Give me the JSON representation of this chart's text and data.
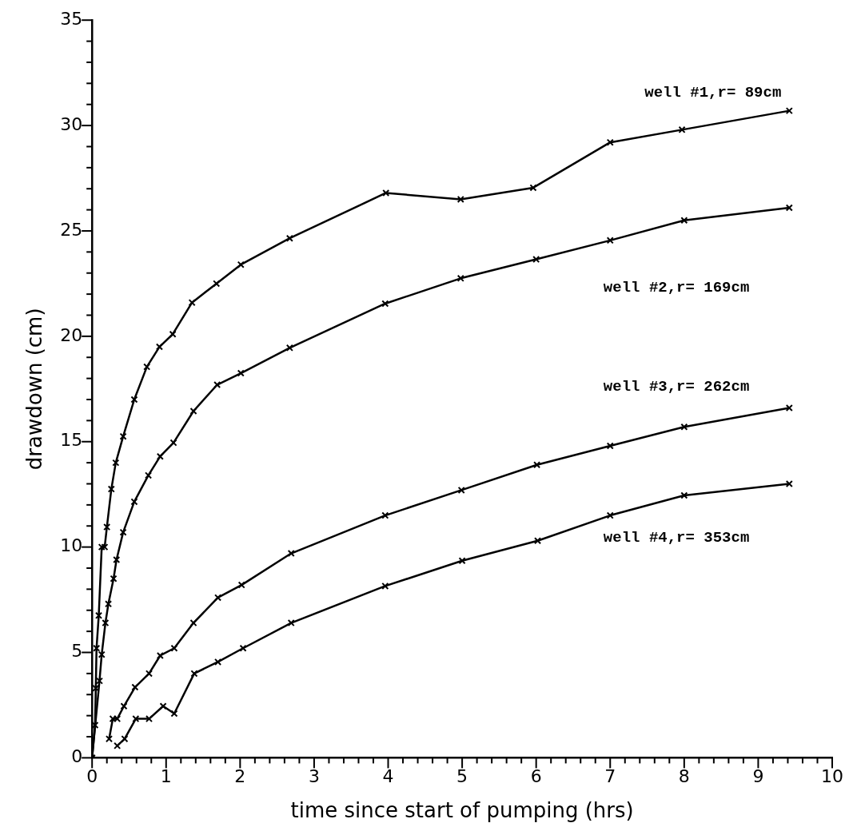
{
  "chart_data": {
    "type": "line",
    "xlabel": "time since start of pumping (hrs)",
    "ylabel": "drawdown (cm)",
    "marker": "cross",
    "line_style": "solid",
    "grid": false,
    "legend": false,
    "xlim": [
      0,
      10
    ],
    "ylim": [
      0,
      35
    ],
    "xticks": [
      0,
      {
        "value": 0.2,
        "label": null
      },
      {
        "value": 0.4,
        "label": null
      },
      {
        "value": 0.6,
        "label": null
      },
      {
        "value": 0.8,
        "label": null
      },
      1,
      {
        "value": 1.2,
        "label": null
      },
      {
        "value": 1.4,
        "label": null
      },
      {
        "value": 1.6,
        "label": null
      },
      {
        "value": 1.8,
        "label": null
      },
      2,
      {
        "value": 2.2,
        "label": null
      },
      {
        "value": 2.4,
        "label": null
      },
      {
        "value": 2.6,
        "label": null
      },
      {
        "value": 2.8,
        "label": null
      },
      3,
      {
        "value": 3.2,
        "label": null
      },
      {
        "value": 3.4,
        "label": null
      },
      {
        "value": 3.6,
        "label": null
      },
      {
        "value": 3.8,
        "label": null
      },
      4,
      {
        "value": 4.2,
        "label": null
      },
      {
        "value": 4.4,
        "label": null
      },
      {
        "value": 4.6,
        "label": null
      },
      {
        "value": 4.8,
        "label": null
      },
      5,
      {
        "value": 5.2,
        "label": null
      },
      {
        "value": 5.4,
        "label": null
      },
      {
        "value": 5.6,
        "label": null
      },
      {
        "value": 5.8,
        "label": null
      },
      6,
      {
        "value": 6.2,
        "label": null
      },
      {
        "value": 6.4,
        "label": null
      },
      {
        "value": 6.6,
        "label": null
      },
      {
        "value": 6.8,
        "label": null
      },
      7,
      {
        "value": 7.2,
        "label": null
      },
      {
        "value": 7.4,
        "label": null
      },
      {
        "value": 7.6,
        "label": null
      },
      {
        "value": 7.8,
        "label": null
      },
      8,
      {
        "value": 8.2,
        "label": null
      },
      {
        "value": 8.4,
        "label": null
      },
      {
        "value": 8.6,
        "label": null
      },
      {
        "value": 8.8,
        "label": null
      },
      9,
      {
        "value": 9.2,
        "label": null
      },
      {
        "value": 9.4,
        "label": null
      },
      {
        "value": 9.6,
        "label": null
      },
      {
        "value": 9.8,
        "label": null
      },
      10
    ],
    "yticks": [
      0,
      {
        "value": 1,
        "label": null
      },
      {
        "value": 2,
        "label": null
      },
      {
        "value": 3,
        "label": null
      },
      {
        "value": 4,
        "label": null
      },
      5,
      {
        "value": 6,
        "label": null
      },
      {
        "value": 7,
        "label": null
      },
      {
        "value": 8,
        "label": null
      },
      {
        "value": 9,
        "label": null
      },
      10,
      {
        "value": 11,
        "label": null
      },
      {
        "value": 12,
        "label": null
      },
      {
        "value": 13,
        "label": null
      },
      {
        "value": 14,
        "label": null
      },
      15,
      {
        "value": 16,
        "label": null
      },
      {
        "value": 17,
        "label": null
      },
      {
        "value": 18,
        "label": null
      },
      {
        "value": 19,
        "label": null
      },
      20,
      {
        "value": 21,
        "label": null
      },
      {
        "value": 22,
        "label": null
      },
      {
        "value": 23,
        "label": null
      },
      {
        "value": 24,
        "label": null
      },
      25,
      {
        "value": 26,
        "label": null
      },
      {
        "value": 27,
        "label": null
      },
      {
        "value": 28,
        "label": null
      },
      {
        "value": 29,
        "label": null
      },
      30,
      {
        "value": 31,
        "label": null
      },
      {
        "value": 32,
        "label": null
      },
      {
        "value": 33,
        "label": null
      },
      {
        "value": 34,
        "label": null
      },
      35
    ],
    "series": [
      {
        "name": "well #1,r= 89cm",
        "color": "#000000",
        "x": [
          0,
          0.04,
          0.05,
          0.06,
          0.09,
          0.13,
          0.17,
          0.2,
          0.26,
          0.32,
          0.42,
          0.57,
          0.74,
          0.91,
          1.09,
          1.35,
          1.68,
          2.01,
          2.67,
          3.97,
          4.98,
          5.96,
          7.0,
          7.97,
          9.42
        ],
        "values": [
          0,
          1.55,
          3.3,
          5.2,
          6.75,
          10.0,
          10.0,
          10.95,
          12.75,
          14.0,
          15.25,
          17.0,
          18.55,
          19.5,
          20.1,
          21.6,
          22.5,
          23.4,
          24.65,
          26.8,
          26.5,
          27.05,
          29.2,
          29.8,
          30.7
        ]
      },
      {
        "name": "well #2,r= 169cm",
        "color": "#000000",
        "x": [
          0,
          0.1,
          0.13,
          0.18,
          0.22,
          0.29,
          0.33,
          0.42,
          0.57,
          0.76,
          0.92,
          1.1,
          1.37,
          1.69,
          2.01,
          2.67,
          3.96,
          4.98,
          6.0,
          7.0,
          8.0,
          9.42
        ],
        "values": [
          0,
          3.65,
          4.9,
          6.4,
          7.3,
          8.5,
          9.4,
          10.7,
          12.15,
          13.4,
          14.3,
          14.95,
          16.45,
          17.7,
          18.25,
          19.45,
          21.55,
          22.75,
          23.65,
          24.55,
          25.5,
          26.1
        ]
      },
      {
        "name": "well #3,r= 262cm",
        "color": "#000000",
        "x": [
          0.23,
          0.28,
          0.34,
          0.43,
          0.58,
          0.77,
          0.92,
          1.11,
          1.37,
          1.7,
          2.02,
          2.69,
          3.96,
          4.99,
          6.01,
          7.0,
          8.0,
          9.42
        ],
        "values": [
          0.9,
          1.85,
          1.85,
          2.45,
          3.35,
          4.0,
          4.85,
          5.2,
          6.4,
          7.6,
          8.2,
          9.7,
          11.5,
          12.7,
          13.9,
          14.8,
          15.7,
          16.6
        ]
      },
      {
        "name": "well #4,r= 353cm",
        "color": "#000000",
        "x": [
          0.34,
          0.44,
          0.59,
          0.77,
          0.96,
          1.11,
          1.38,
          1.7,
          2.04,
          2.69,
          3.96,
          5.0,
          6.02,
          7.0,
          8.0,
          9.42
        ],
        "values": [
          0.57,
          0.9,
          1.85,
          1.85,
          2.45,
          2.1,
          4.0,
          4.55,
          5.2,
          6.4,
          8.15,
          9.35,
          10.3,
          11.5,
          12.45,
          13.0
        ]
      }
    ]
  }
}
